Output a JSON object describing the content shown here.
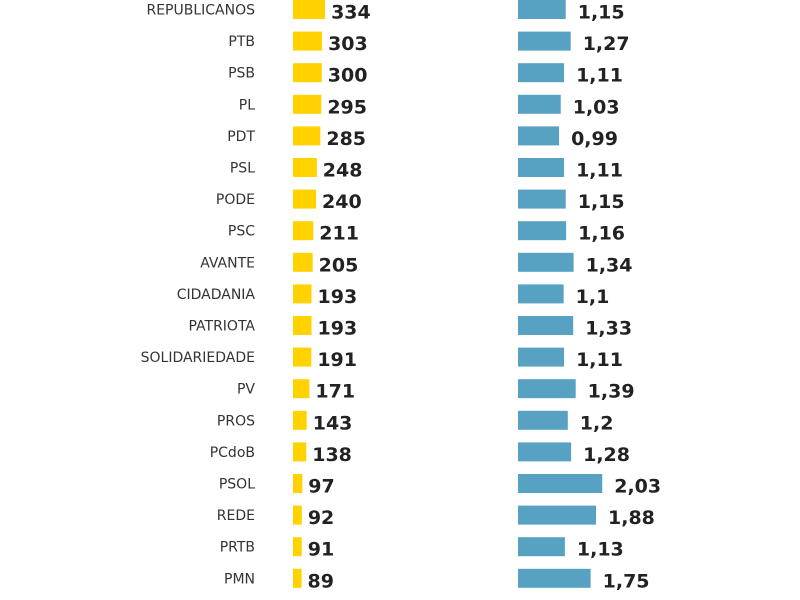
{
  "chart_data": {
    "type": "bar",
    "orientation": "horizontal",
    "categories": [
      "REPUBLICANOS",
      "PTB",
      "PSB",
      "PL",
      "PDT",
      "PSL",
      "PODE",
      "PSC",
      "AVANTE",
      "CIDADANIA",
      "PATRIOTA",
      "SOLIDARIEDADE",
      "PV",
      "PROS",
      "PCdoB",
      "PSOL",
      "REDE",
      "PRTB",
      "PMN"
    ],
    "series": [
      {
        "name": "count",
        "color": "#FFD200",
        "values": [
          334,
          303,
          300,
          295,
          285,
          248,
          240,
          211,
          205,
          193,
          193,
          191,
          171,
          143,
          138,
          97,
          92,
          91,
          89
        ],
        "labels": [
          "334",
          "303",
          "300",
          "295",
          "285",
          "248",
          "240",
          "211",
          "205",
          "193",
          "193",
          "191",
          "171",
          "143",
          "138",
          "97",
          "92",
          "91",
          "89"
        ]
      },
      {
        "name": "ratio",
        "color": "#57A1C2",
        "values": [
          1.15,
          1.27,
          1.11,
          1.03,
          0.99,
          1.11,
          1.15,
          1.16,
          1.34,
          1.1,
          1.33,
          1.11,
          1.39,
          1.2,
          1.28,
          2.03,
          1.88,
          1.13,
          1.75
        ],
        "labels": [
          "1,15",
          "1,27",
          "1,11",
          "1,03",
          "0,99",
          "1,11",
          "1,15",
          "1,16",
          "1,34",
          "1,1",
          "1,33",
          "1,11",
          "1,39",
          "1,2",
          "1,28",
          "2,03",
          "1,88",
          "1,13",
          "1,75"
        ]
      }
    ]
  }
}
